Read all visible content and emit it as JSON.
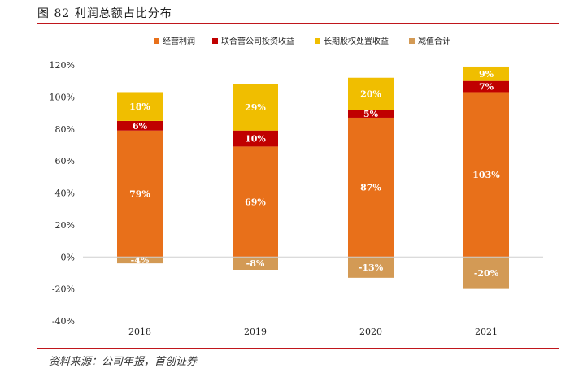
{
  "figure": {
    "title": "图 82 利润总额占比分布",
    "source": "资料来源：公司年报，首创证券"
  },
  "chart_data": {
    "type": "bar",
    "stacked": true,
    "categories": [
      "2018",
      "2019",
      "2020",
      "2021"
    ],
    "series": [
      {
        "name": "经营利润",
        "color": "#e8701a",
        "values": [
          79,
          69,
          87,
          103
        ],
        "labels": [
          "79%",
          "69%",
          "87%",
          "103%"
        ]
      },
      {
        "name": "联合营公司投资收益",
        "color": "#c00000",
        "values": [
          6,
          10,
          5,
          7
        ],
        "labels": [
          "6%",
          "10%",
          "5%",
          "7%"
        ]
      },
      {
        "name": "长期股权处置收益",
        "color": "#f0be00",
        "values": [
          18,
          29,
          20,
          9
        ],
        "labels": [
          "18%",
          "29%",
          "20%",
          "9%"
        ]
      },
      {
        "name": "减值合计",
        "color": "#d39a55",
        "values": [
          -4,
          -8,
          -13,
          -20
        ],
        "labels": [
          "-4%",
          "-8%",
          "-13%",
          "-20%"
        ]
      }
    ],
    "yticks": [
      120,
      100,
      80,
      60,
      40,
      20,
      0,
      -20,
      -40
    ],
    "ytick_labels": [
      "120%",
      "100%",
      "80%",
      "60%",
      "40%",
      "20%",
      "0%",
      "-20%",
      "-40%"
    ],
    "ylim": [
      -40,
      120
    ],
    "legend_position": "top-center",
    "grid": false
  }
}
